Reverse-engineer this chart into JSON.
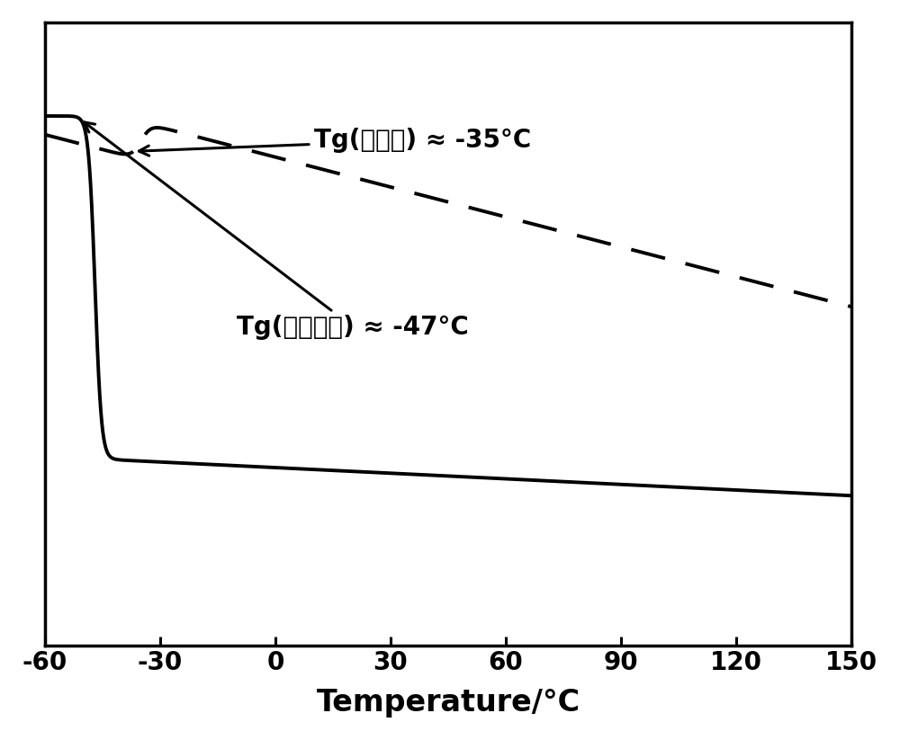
{
  "xlim": [
    -60,
    150
  ],
  "ylim": [
    0,
    1.0
  ],
  "xticks": [
    -60,
    -30,
    0,
    30,
    60,
    90,
    120,
    150
  ],
  "xlabel": "Temperature/°C",
  "xlabel_fontsize": 24,
  "xtick_fontsize": 20,
  "background_color": "#ffffff",
  "line_color": "#000000",
  "ann1_text": "Tg(聚氨酷) ≈ -35°C",
  "ann2_text": "Tg(聚酰软段) ≈ -47°C",
  "ann_fontsize": 20
}
